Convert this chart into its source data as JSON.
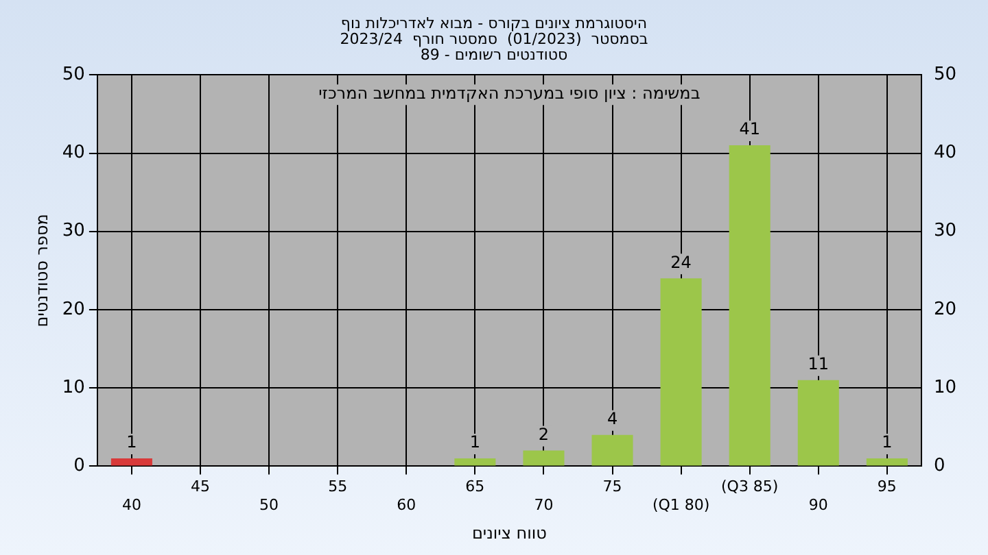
{
  "chart_data": {
    "type": "bar",
    "title": [
      "היסטוגרמת ציונים בקורס - מבוא לאדריכלות נוף",
      "בסמסטר  (01/2023)  סמסטר חורף  2023/24",
      "סטודנטים רשומים - 89"
    ],
    "xlabel": "טווח ציונים",
    "ylabel": "מספר סטודנטים",
    "annotations": [
      "במשימה : ציון סופי במערכת האקדמית במחשב המרכזי"
    ],
    "categories": [
      "40",
      "45",
      "50",
      "55",
      "60",
      "65",
      "70",
      "75",
      "(Q1 80)",
      "(Q3 85)",
      "90",
      "95"
    ],
    "values": [
      1,
      0,
      0,
      0,
      0,
      1,
      2,
      4,
      24,
      41,
      11,
      1
    ],
    "value_labels": [
      "1",
      null,
      null,
      null,
      null,
      "1",
      "2",
      "4",
      "24",
      "41",
      "11",
      "1"
    ],
    "colors": [
      "#d83a3a",
      "#9cc64a",
      "#9cc64a",
      "#9cc64a",
      "#9cc64a",
      "#9cc64a",
      "#9cc64a",
      "#9cc64a",
      "#9cc64a",
      "#9cc64a",
      "#9cc64a",
      "#9cc64a"
    ],
    "ylim": [
      0,
      50
    ],
    "yticks": [
      0,
      10,
      20,
      30,
      40,
      50
    ],
    "y2lim": [
      0,
      50
    ],
    "y2ticks": [
      0,
      10,
      20,
      30,
      40,
      50
    ],
    "grid": true,
    "legend": false
  }
}
